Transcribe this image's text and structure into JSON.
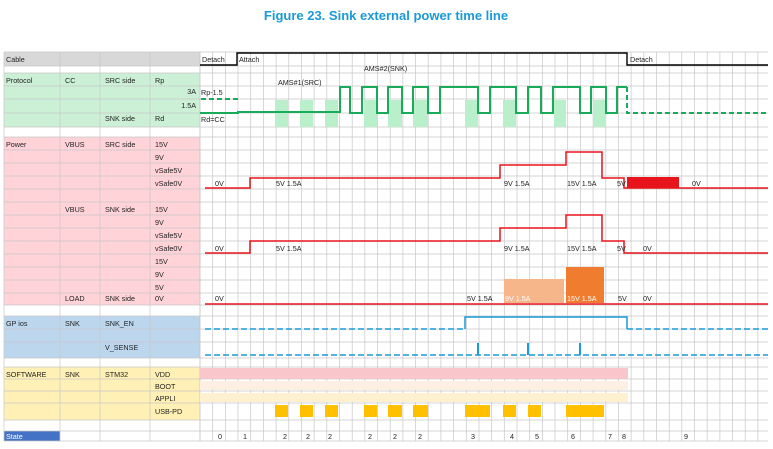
{
  "title": "Figure 23. Sink external power time line",
  "colors": {
    "cable": "#000000",
    "protocol": "#1aab5a",
    "protocol_fill": "#b9efcb",
    "power": "#e8141c",
    "power_fill_dark": "#f07c30",
    "power_fill_light": "#f7b58a",
    "gpio": "#1a9ad6",
    "software": "#ffc000",
    "software_fill": "#fff1cf",
    "vdd_fill": "#f9c6cc"
  },
  "rows": {
    "cable": {
      "label": "Cable",
      "detach": "Detach",
      "attach": "Attach",
      "detach2": "Detach"
    },
    "protocol": {
      "label": "Protocol",
      "cc": "CC",
      "src_side": "SRC side",
      "rp": "Rp",
      "snk_side": "SNK side",
      "rd": "Rd",
      "level_3a": "3A",
      "level_15a": "1.5A",
      "rp15": "Rp-1.5",
      "rdcc": "Rd=CC",
      "ams1": "AMS#1(SRC)",
      "ams2": "AMS#2(SNK)"
    },
    "power": {
      "label": "Power",
      "vbus1": "VBUS",
      "src_side": "SRC side",
      "levels1": [
        "15V",
        "9V",
        "vSafe5V",
        "vSafe0V"
      ],
      "vbus2": "VBUS",
      "snk_side": "SNK side",
      "levels2": [
        "15V",
        "9V",
        "vSafe5V",
        "vSafe0V",
        "15V",
        "9V",
        "5V",
        "0V"
      ],
      "load": "LOAD",
      "load_side": "SNK side",
      "src_annots": [
        "0V",
        "5V 1.5A",
        "9V 1.5A",
        "15V 1.5A",
        "5V",
        "0V"
      ],
      "snk_annots": [
        "0V",
        "5V 1.5A",
        "9V 1.5A",
        "15V 1.5A",
        "5V",
        "0V"
      ],
      "load_annots": [
        "0V",
        "5V 1.5A",
        "9V 1.5A",
        "15V 1.5A",
        "5V",
        "0V"
      ]
    },
    "gpios": {
      "label": "GP ios",
      "snk": "SNK",
      "snk_en": "SNK_EN",
      "v_sense": "V_SENSE"
    },
    "software": {
      "label": "SOFTWARE",
      "snk": "SNK",
      "stm32": "STM32",
      "items": [
        "VDD",
        "BOOT",
        "APPLI",
        "USB-PD"
      ]
    },
    "state": {
      "label": "State",
      "values": [
        "0",
        "1",
        "2",
        "2",
        "2",
        "2",
        "2",
        "2",
        "3",
        "4",
        "5",
        "6",
        "7",
        "8",
        "9"
      ]
    }
  }
}
